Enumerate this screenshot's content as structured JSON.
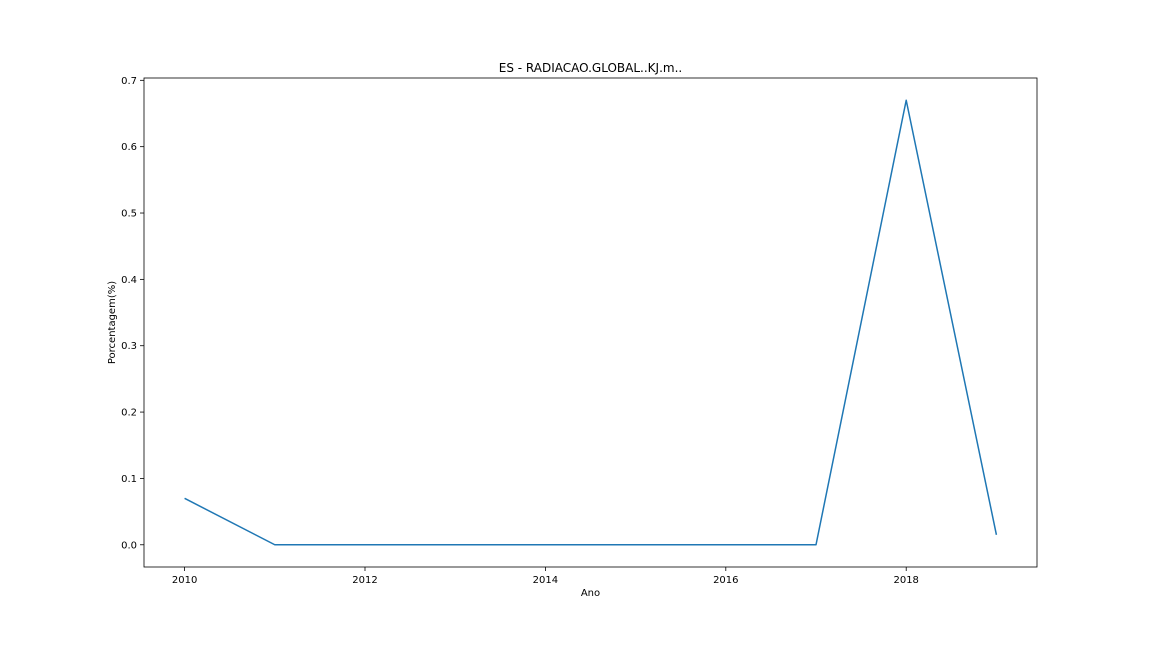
{
  "chart_data": {
    "type": "line",
    "title": "ES - RADIACAO.GLOBAL..KJ.m..",
    "xlabel": "Ano",
    "ylabel": "Porcentagem(%)",
    "xlim": [
      2009.55,
      2019.45
    ],
    "ylim": [
      -0.0335,
      0.7035
    ],
    "xticks": [
      2010,
      2012,
      2014,
      2016,
      2018
    ],
    "yticks": [
      0.0,
      0.1,
      0.2,
      0.3,
      0.4,
      0.5,
      0.6,
      0.7
    ],
    "ytick_labels": [
      "0.0",
      "0.1",
      "0.2",
      "0.3",
      "0.4",
      "0.5",
      "0.6",
      "0.7"
    ],
    "grid": false,
    "series": [
      {
        "color": "#1f77b4",
        "x": [
          2010,
          2011,
          2012,
          2013,
          2014,
          2015,
          2016,
          2017,
          2018,
          2019
        ],
        "values": [
          0.07,
          0.0,
          0.0,
          0.0,
          0.0,
          0.0,
          0.0,
          0.0,
          0.67,
          0.015
        ]
      }
    ]
  }
}
